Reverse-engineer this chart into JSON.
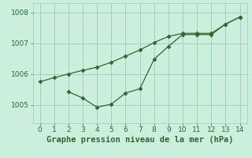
{
  "line1_x": [
    0,
    1,
    2,
    3,
    4,
    5,
    6,
    7,
    8,
    9,
    10,
    11,
    12,
    13,
    14
  ],
  "line1_y": [
    1005.75,
    1005.88,
    1006.0,
    1006.12,
    1006.22,
    1006.38,
    1006.58,
    1006.78,
    1007.02,
    1007.22,
    1007.32,
    1007.32,
    1007.32,
    1007.62,
    1007.85
  ],
  "line2_x": [
    2,
    3,
    4,
    5,
    6,
    7,
    8,
    9,
    10,
    11,
    12,
    13,
    14
  ],
  "line2_y": [
    1005.42,
    1005.22,
    1004.92,
    1005.02,
    1005.38,
    1005.52,
    1006.48,
    1006.9,
    1007.28,
    1007.28,
    1007.28,
    1007.62,
    1007.85
  ],
  "line_color": "#2d6a2d",
  "bg_color": "#cceedd",
  "grid_color": "#99ccbb",
  "xlabel": "Graphe pression niveau de la mer (hPa)",
  "xlabel_color": "#2d6a2d",
  "xlabel_fontsize": 7.5,
  "xticks": [
    0,
    1,
    2,
    3,
    4,
    5,
    6,
    7,
    8,
    9,
    10,
    11,
    12,
    13,
    14
  ],
  "yticks": [
    1005,
    1006,
    1007,
    1008
  ],
  "xlim": [
    -0.5,
    14.5
  ],
  "ylim": [
    1004.4,
    1008.3
  ],
  "tick_fontsize": 6.5,
  "marker": "D",
  "markersize": 2.5,
  "linewidth": 0.9
}
